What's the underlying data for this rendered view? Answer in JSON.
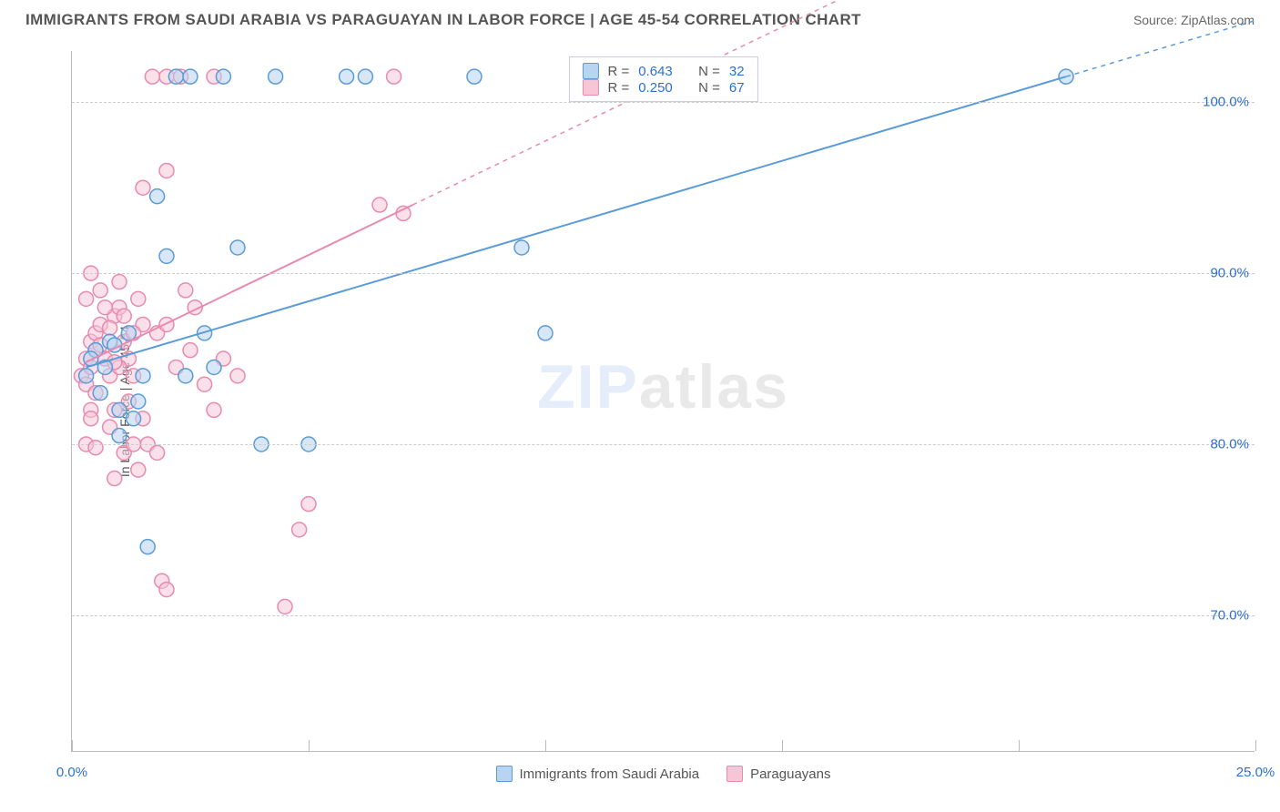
{
  "header": {
    "title": "IMMIGRANTS FROM SAUDI ARABIA VS PARAGUAYAN IN LABOR FORCE | AGE 45-54 CORRELATION CHART",
    "source": "Source: ZipAtlas.com"
  },
  "chart": {
    "type": "scatter",
    "ylabel": "In Labor Force | Age 45-54",
    "watermark": "ZIPatlas",
    "background_color": "#ffffff",
    "grid_color": "#cccccc",
    "axis_color": "#bbbbbb",
    "text_color": "#555555",
    "value_color": "#2b6fd6",
    "xlim": [
      0,
      25
    ],
    "ylim": [
      62,
      103
    ],
    "xticks": [
      0,
      5,
      10,
      15,
      20,
      25
    ],
    "xtick_labels": [
      "0.0%",
      "",
      "",
      "",
      "",
      "25.0%"
    ],
    "ygrid": [
      70,
      80,
      90,
      100
    ],
    "ytick_labels": [
      "70.0%",
      "80.0%",
      "90.0%",
      "100.0%"
    ],
    "marker_radius": 8,
    "marker_stroke_width": 1.5,
    "series": [
      {
        "name": "Immigrants from Saudi Arabia",
        "fill": "#b8d4f0",
        "stroke": "#5a9bd8",
        "fill_opacity": 0.55,
        "R": "0.643",
        "N": "32",
        "regression": {
          "x1": 0.3,
          "y1": 84.5,
          "x2": 21,
          "y2": 101.5,
          "extend_dash_x2": 25
        },
        "points": [
          [
            0.3,
            84.0
          ],
          [
            0.5,
            85.5
          ],
          [
            0.8,
            86.0
          ],
          [
            0.6,
            83.0
          ],
          [
            0.4,
            85.0
          ],
          [
            0.7,
            84.5
          ],
          [
            1.0,
            82.0
          ],
          [
            1.2,
            86.5
          ],
          [
            1.5,
            84.0
          ],
          [
            1.3,
            81.5
          ],
          [
            2.2,
            101.5
          ],
          [
            2.5,
            101.5
          ],
          [
            1.8,
            94.5
          ],
          [
            2.0,
            91.0
          ],
          [
            2.8,
            86.5
          ],
          [
            3.2,
            101.5
          ],
          [
            3.5,
            91.5
          ],
          [
            3.0,
            84.5
          ],
          [
            4.3,
            101.5
          ],
          [
            4.0,
            80.0
          ],
          [
            5.8,
            101.5
          ],
          [
            5.0,
            80.0
          ],
          [
            6.2,
            101.5
          ],
          [
            8.5,
            101.5
          ],
          [
            9.5,
            91.5
          ],
          [
            10.0,
            86.5
          ],
          [
            1.6,
            74.0
          ],
          [
            1.0,
            80.5
          ],
          [
            1.4,
            82.5
          ],
          [
            0.9,
            85.8
          ],
          [
            2.4,
            84.0
          ],
          [
            21.0,
            101.5
          ]
        ]
      },
      {
        "name": "Paraguayans",
        "fill": "#f5c6d6",
        "stroke": "#e88ab0",
        "fill_opacity": 0.55,
        "R": "0.250",
        "N": "67",
        "regression": {
          "x1": 0.3,
          "y1": 84.8,
          "x2": 7.2,
          "y2": 94.0,
          "extend_dash_x2": 25
        },
        "points": [
          [
            0.2,
            84.0
          ],
          [
            0.3,
            85.0
          ],
          [
            0.4,
            86.0
          ],
          [
            0.5,
            85.5
          ],
          [
            0.3,
            83.5
          ],
          [
            0.4,
            84.5
          ],
          [
            0.5,
            86.5
          ],
          [
            0.6,
            87.0
          ],
          [
            0.7,
            85.0
          ],
          [
            0.8,
            84.0
          ],
          [
            0.5,
            83.0
          ],
          [
            0.6,
            85.8
          ],
          [
            0.4,
            82.0
          ],
          [
            0.3,
            80.0
          ],
          [
            0.9,
            87.5
          ],
          [
            1.0,
            88.0
          ],
          [
            1.1,
            86.0
          ],
          [
            1.2,
            85.0
          ],
          [
            1.3,
            84.0
          ],
          [
            1.4,
            88.5
          ],
          [
            1.5,
            87.0
          ],
          [
            1.0,
            84.5
          ],
          [
            1.2,
            82.5
          ],
          [
            0.8,
            81.0
          ],
          [
            0.9,
            82.0
          ],
          [
            1.1,
            79.5
          ],
          [
            1.3,
            80.0
          ],
          [
            1.5,
            81.5
          ],
          [
            1.8,
            86.5
          ],
          [
            2.0,
            87.0
          ],
          [
            2.2,
            84.5
          ],
          [
            2.5,
            85.5
          ],
          [
            1.7,
            101.5
          ],
          [
            2.0,
            101.5
          ],
          [
            2.3,
            101.5
          ],
          [
            3.0,
            101.5
          ],
          [
            2.0,
            96.0
          ],
          [
            1.5,
            95.0
          ],
          [
            1.0,
            89.5
          ],
          [
            0.6,
            89.0
          ],
          [
            0.4,
            90.0
          ],
          [
            0.3,
            88.5
          ],
          [
            6.5,
            94.0
          ],
          [
            7.0,
            93.5
          ],
          [
            6.8,
            101.5
          ],
          [
            5.0,
            76.5
          ],
          [
            4.8,
            75.0
          ],
          [
            4.5,
            70.5
          ],
          [
            1.9,
            72.0
          ],
          [
            2.0,
            71.5
          ],
          [
            1.6,
            80.0
          ],
          [
            1.8,
            79.5
          ],
          [
            1.4,
            78.5
          ],
          [
            0.9,
            78.0
          ],
          [
            0.5,
            79.8
          ],
          [
            0.4,
            81.5
          ],
          [
            2.8,
            83.5
          ],
          [
            3.0,
            82.0
          ],
          [
            3.2,
            85.0
          ],
          [
            2.6,
            88.0
          ],
          [
            2.4,
            89.0
          ],
          [
            3.5,
            84.0
          ],
          [
            0.7,
            88.0
          ],
          [
            0.8,
            86.8
          ],
          [
            0.9,
            84.8
          ],
          [
            1.1,
            87.5
          ],
          [
            1.3,
            86.5
          ]
        ]
      }
    ],
    "legend_top_prefixes": {
      "R": "R =",
      "N": "N ="
    }
  }
}
